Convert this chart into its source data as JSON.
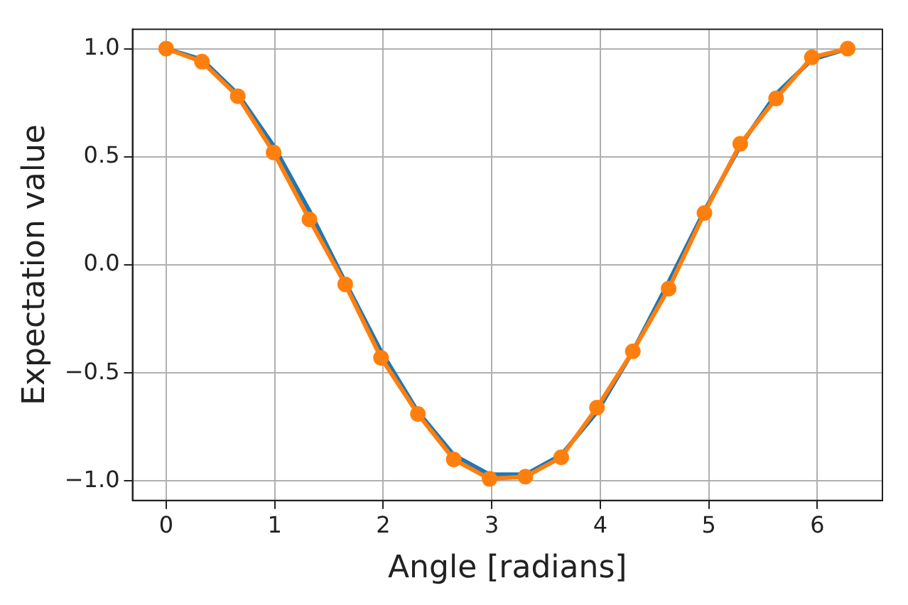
{
  "chart_data": {
    "type": "line",
    "xlabel": "Angle [radians]",
    "ylabel": "Expectation value",
    "xlim": [
      -0.31,
      6.6
    ],
    "ylim": [
      -1.09,
      1.09
    ],
    "xticks": [
      0,
      1,
      2,
      3,
      4,
      5,
      6
    ],
    "yticks": [
      {
        "value": -1,
        "label": "−1.0"
      },
      {
        "value": -0.5,
        "label": "−0.5"
      },
      {
        "value": 0,
        "label": "0.0"
      },
      {
        "value": 0.5,
        "label": "0.5"
      },
      {
        "value": 1,
        "label": "1.0"
      }
    ],
    "grid": true,
    "legend": false,
    "line_style": "solid",
    "x": [
      0,
      0.33,
      0.66,
      0.99,
      1.32,
      1.65,
      1.98,
      2.32,
      2.65,
      2.98,
      3.31,
      3.64,
      3.97,
      4.3,
      4.63,
      4.96,
      5.29,
      5.62,
      5.95,
      6.28
    ],
    "series": [
      {
        "color": "#1f77b4",
        "marker": "none",
        "values": [
          1.0,
          0.95,
          0.79,
          0.55,
          0.25,
          -0.08,
          -0.4,
          -0.68,
          -0.88,
          -0.97,
          -0.97,
          -0.88,
          -0.68,
          -0.4,
          -0.08,
          0.25,
          0.55,
          0.79,
          0.95,
          1.0
        ]
      },
      {
        "color": "#ff7f0e",
        "marker": "circle",
        "values": [
          1.0,
          0.94,
          0.78,
          0.52,
          0.21,
          -0.09,
          -0.43,
          -0.69,
          -0.9,
          -0.99,
          -0.98,
          -0.89,
          -0.66,
          -0.4,
          -0.11,
          0.24,
          0.56,
          0.77,
          0.96,
          1.0
        ]
      }
    ]
  }
}
